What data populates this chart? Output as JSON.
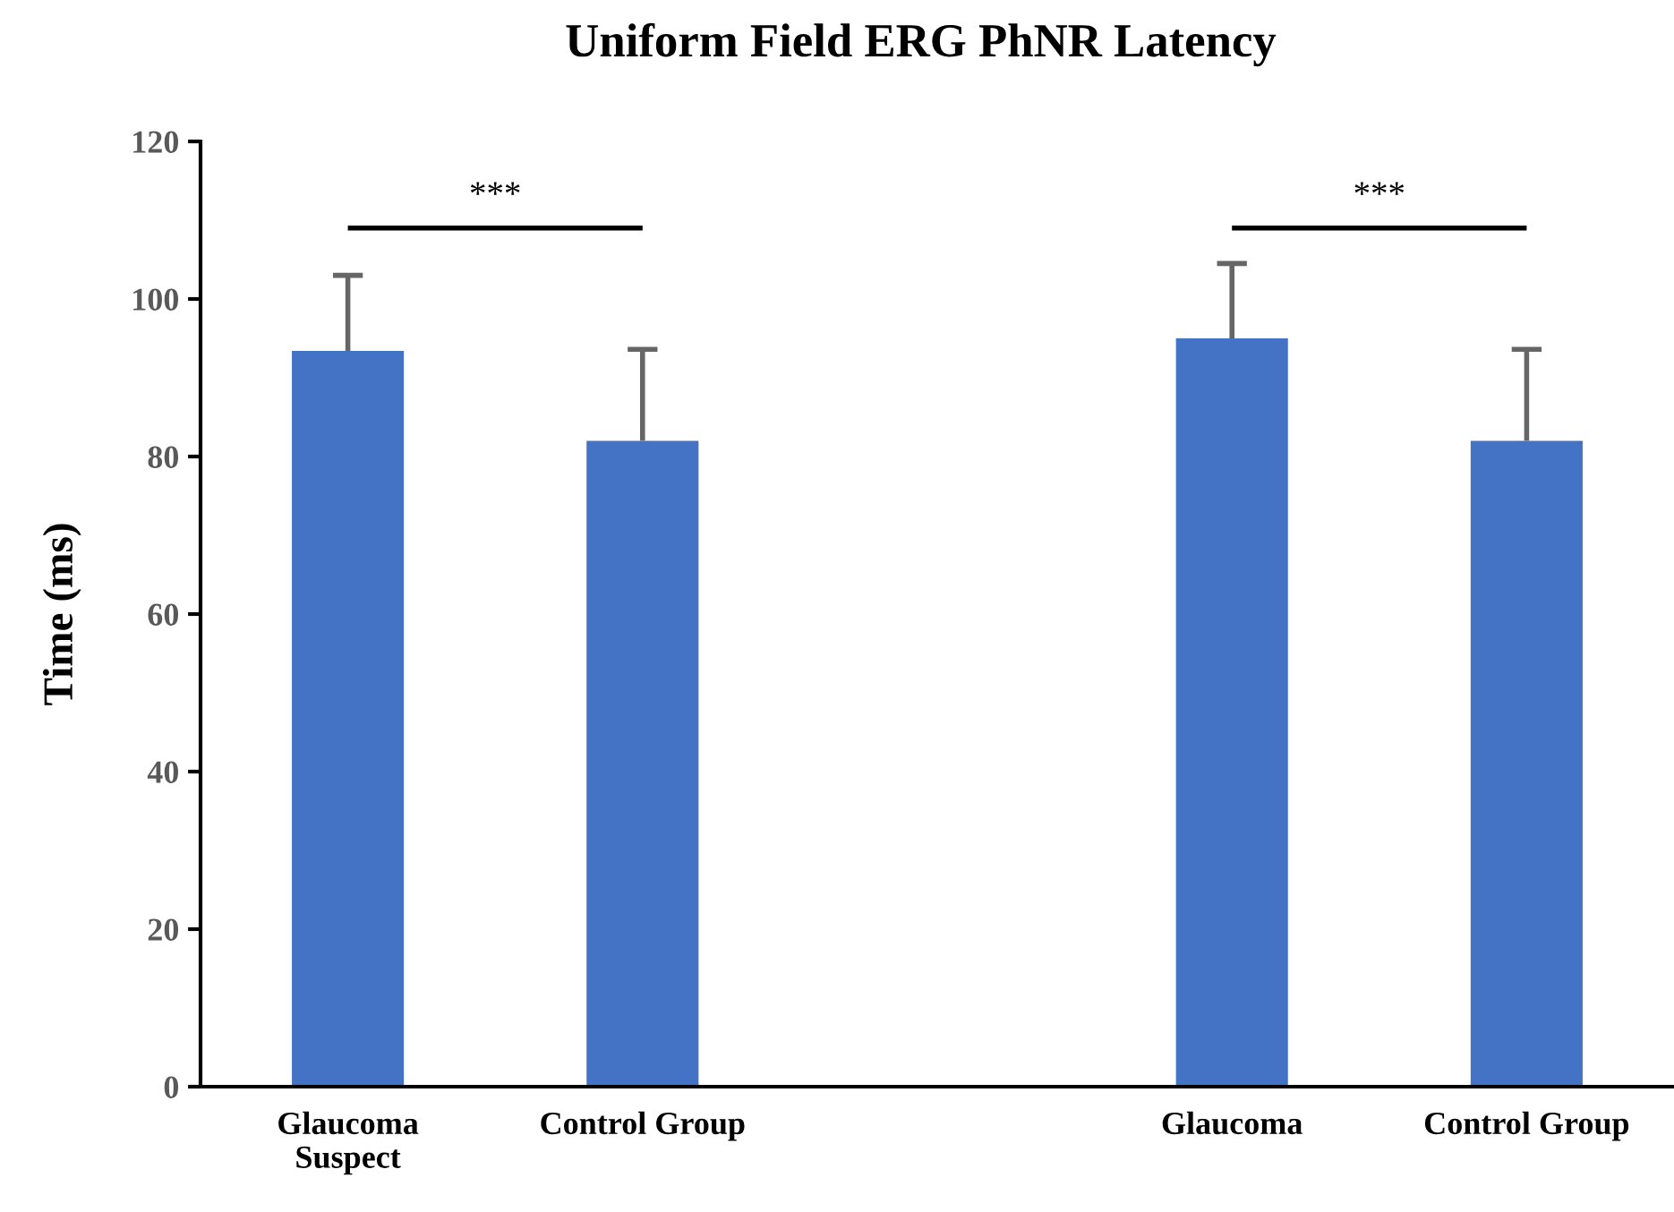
{
  "chart_data": {
    "type": "bar",
    "title": "Uniform Field ERG PhNR Latency",
    "ylabel": "Time (ms)",
    "categories": [
      "Glaucoma\nSuspect",
      "Control Group",
      null,
      "Glaucoma",
      "Control Group"
    ],
    "values": [
      93.4,
      82.0,
      null,
      95.0,
      82.0
    ],
    "errors": [
      [
        93.4,
        103.0
      ],
      [
        82.0,
        93.6
      ],
      null,
      [
        95.0,
        104.5
      ],
      [
        82.0,
        93.6
      ]
    ],
    "color": "#4472c4",
    "ylim": [
      0,
      120
    ],
    "yticks": [
      0,
      20,
      40,
      60,
      80,
      100,
      120
    ],
    "annotations": [
      "***",
      "***"
    ],
    "grid": false
  }
}
